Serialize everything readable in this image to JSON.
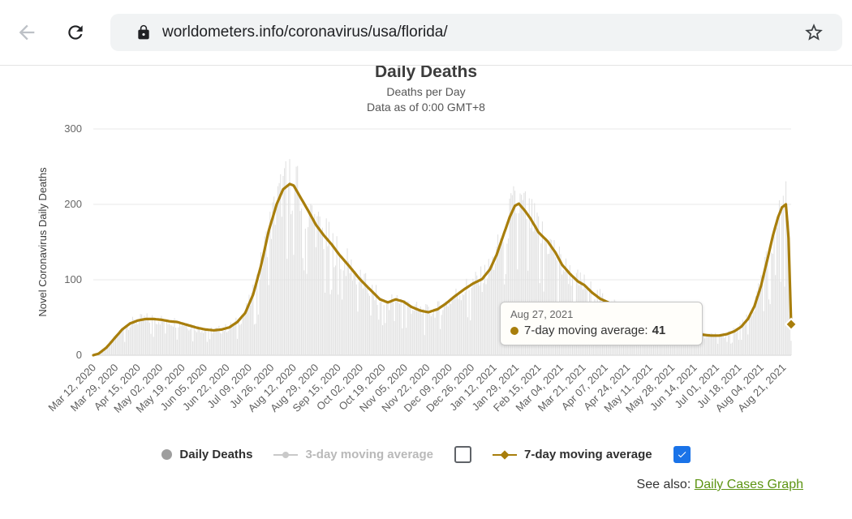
{
  "browser": {
    "url": "worldometers.info/coronavirus/usa/florida/",
    "icons": [
      "back-arrow",
      "reload",
      "padlock",
      "star-outline"
    ]
  },
  "header": {
    "title": "Daily Deaths",
    "subtitle": "Deaths per Day",
    "as_of": "Data as of 0:00 GMT+8"
  },
  "tooltip": {
    "date": "Aug 27, 2021",
    "series_label": "7-day moving average:",
    "value": "41"
  },
  "legend": {
    "daily_deaths": "Daily Deaths",
    "three_day": "3-day moving average",
    "seven_day": "7-day moving average",
    "three_day_checked": false,
    "seven_day_checked": true
  },
  "see_also": {
    "label": "See also:",
    "link_text": "Daily Cases Graph"
  },
  "colors": {
    "line": "#a87e0c",
    "bars": "#e2e2e2",
    "grid": "#e8e8e8",
    "checkbox_checked": "#1a73e8",
    "link": "#5d9412"
  },
  "chart_data": {
    "type": "bar",
    "title": "Daily Deaths",
    "subtitle": "Deaths per Day",
    "ylabel": "Novel Coronavirus Daily Deaths",
    "ylim": [
      0,
      300
    ],
    "y_ticks": [
      0,
      100,
      200,
      300
    ],
    "x_tick_interval_days": 17,
    "total_days": 533,
    "x_tick_labels": [
      "Mar 12, 2020",
      "Mar 29, 2020",
      "Apr 15, 2020",
      "May 02, 2020",
      "May 19, 2020",
      "Jun 05, 2020",
      "Jun 22, 2020",
      "Jul 09, 2020",
      "Jul 26, 2020",
      "Aug 12, 2020",
      "Aug 29, 2020",
      "Sep 15, 2020",
      "Oct 02, 2020",
      "Oct 19, 2020",
      "Nov 05, 2020",
      "Nov 22, 2020",
      "Dec 09, 2020",
      "Dec 26, 2020",
      "Jan 12, 2021",
      "Jan 29, 2021",
      "Feb 15, 2021",
      "Mar 04, 2021",
      "Mar 21, 2021",
      "Apr 07, 2021",
      "Apr 24, 2021",
      "May 11, 2021",
      "May 28, 2021",
      "Jun 14, 2021",
      "Jul 01, 2021",
      "Jul 18, 2021",
      "Aug 04, 2021",
      "Aug 21, 2021"
    ],
    "series": [
      {
        "name": "Daily Deaths",
        "type": "bar",
        "color": "#e2e2e2",
        "note": "daily reported deaths; noisy values scattered around the 7-day moving average"
      },
      {
        "name": "7-day moving average",
        "type": "line",
        "color": "#a87e0c",
        "points_day_value": [
          [
            0,
            0
          ],
          [
            4,
            2
          ],
          [
            10,
            10
          ],
          [
            16,
            22
          ],
          [
            22,
            34
          ],
          [
            28,
            42
          ],
          [
            34,
            46
          ],
          [
            40,
            48
          ],
          [
            46,
            48
          ],
          [
            52,
            47
          ],
          [
            58,
            45
          ],
          [
            64,
            44
          ],
          [
            68,
            42
          ],
          [
            74,
            39
          ],
          [
            80,
            36
          ],
          [
            86,
            34
          ],
          [
            92,
            33
          ],
          [
            98,
            34
          ],
          [
            104,
            37
          ],
          [
            110,
            44
          ],
          [
            116,
            56
          ],
          [
            122,
            80
          ],
          [
            128,
            118
          ],
          [
            134,
            165
          ],
          [
            140,
            200
          ],
          [
            145,
            220
          ],
          [
            150,
            227
          ],
          [
            153,
            225
          ],
          [
            158,
            210
          ],
          [
            164,
            192
          ],
          [
            170,
            173
          ],
          [
            176,
            159
          ],
          [
            182,
            147
          ],
          [
            188,
            133
          ],
          [
            195,
            119
          ],
          [
            204,
            100
          ],
          [
            212,
            86
          ],
          [
            219,
            74
          ],
          [
            225,
            70
          ],
          [
            231,
            74
          ],
          [
            237,
            71
          ],
          [
            243,
            64
          ],
          [
            250,
            59
          ],
          [
            256,
            57
          ],
          [
            263,
            61
          ],
          [
            269,
            68
          ],
          [
            276,
            78
          ],
          [
            283,
            87
          ],
          [
            290,
            95
          ],
          [
            297,
            101
          ],
          [
            303,
            114
          ],
          [
            308,
            133
          ],
          [
            313,
            158
          ],
          [
            318,
            183
          ],
          [
            322,
            198
          ],
          [
            325,
            201
          ],
          [
            329,
            193
          ],
          [
            334,
            181
          ],
          [
            340,
            163
          ],
          [
            347,
            151
          ],
          [
            353,
            136
          ],
          [
            358,
            120
          ],
          [
            364,
            108
          ],
          [
            370,
            98
          ],
          [
            375,
            93
          ],
          [
            381,
            83
          ],
          [
            387,
            75
          ],
          [
            392,
            71
          ],
          [
            398,
            66
          ],
          [
            404,
            63
          ],
          [
            409,
            62
          ],
          [
            415,
            60
          ],
          [
            421,
            58
          ],
          [
            426,
            57
          ],
          [
            432,
            51
          ],
          [
            438,
            47
          ],
          [
            443,
            43
          ],
          [
            449,
            38
          ],
          [
            455,
            33
          ],
          [
            460,
            30
          ],
          [
            466,
            27
          ],
          [
            472,
            26
          ],
          [
            478,
            26
          ],
          [
            484,
            28
          ],
          [
            490,
            32
          ],
          [
            495,
            38
          ],
          [
            500,
            48
          ],
          [
            505,
            65
          ],
          [
            510,
            92
          ],
          [
            515,
            128
          ],
          [
            519,
            158
          ],
          [
            523,
            183
          ],
          [
            526,
            196
          ],
          [
            529,
            200
          ],
          [
            531,
            155
          ],
          [
            533,
            41
          ]
        ]
      }
    ],
    "last_point": {
      "date": "Aug 27, 2021",
      "series": "7-day moving average",
      "value": 41
    },
    "legend_position": "bottom",
    "grid": "horizontal-only"
  }
}
